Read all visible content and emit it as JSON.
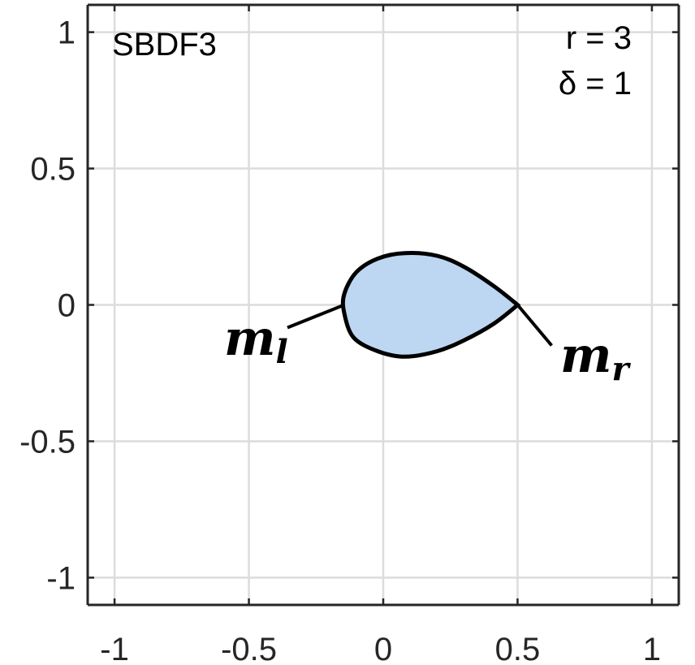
{
  "chart_data": {
    "type": "area",
    "title": "",
    "xlabel": "",
    "ylabel": "",
    "xlim": [
      -1.1,
      1.1
    ],
    "ylim": [
      -1.1,
      1.1
    ],
    "xticks": [
      -1,
      -0.5,
      0,
      0.5,
      1
    ],
    "yticks": [
      -1,
      -0.5,
      0,
      0.5,
      1
    ],
    "xtick_labels": [
      "-1",
      "-0.5",
      "0",
      "0.5",
      "1"
    ],
    "ytick_labels": [
      "-1",
      "-0.5",
      "0",
      "0.5",
      "1"
    ],
    "grid": true,
    "region": {
      "fill_color": "#bdd7f2",
      "edge_color": "#000000",
      "boundary": [
        [
          0.5,
          0.0
        ],
        [
          0.41,
          0.07
        ],
        [
          0.3,
          0.14
        ],
        [
          0.2,
          0.18
        ],
        [
          0.08,
          0.19
        ],
        [
          -0.02,
          0.17
        ],
        [
          -0.1,
          0.12
        ],
        [
          -0.145,
          0.04
        ],
        [
          -0.145,
          -0.03
        ],
        [
          -0.11,
          -0.12
        ],
        [
          -0.02,
          -0.17
        ],
        [
          0.08,
          -0.19
        ],
        [
          0.2,
          -0.17
        ],
        [
          0.3,
          -0.13
        ],
        [
          0.41,
          -0.07
        ]
      ]
    },
    "annotations": [
      {
        "text": "SBDF3",
        "position": "top-left"
      },
      {
        "text": "r = 3",
        "position": "top-right"
      },
      {
        "text": "δ = 1",
        "position": "top-right"
      }
    ],
    "points": [
      {
        "base": "m",
        "subscript": "l",
        "x": -0.145,
        "y": 0.0
      },
      {
        "base": "m",
        "subscript": "r",
        "x": 0.5,
        "y": 0.0
      }
    ]
  },
  "colors": {
    "grid": "#dcdcdc",
    "axis": "#262626",
    "fill": "#bdd7f2"
  }
}
